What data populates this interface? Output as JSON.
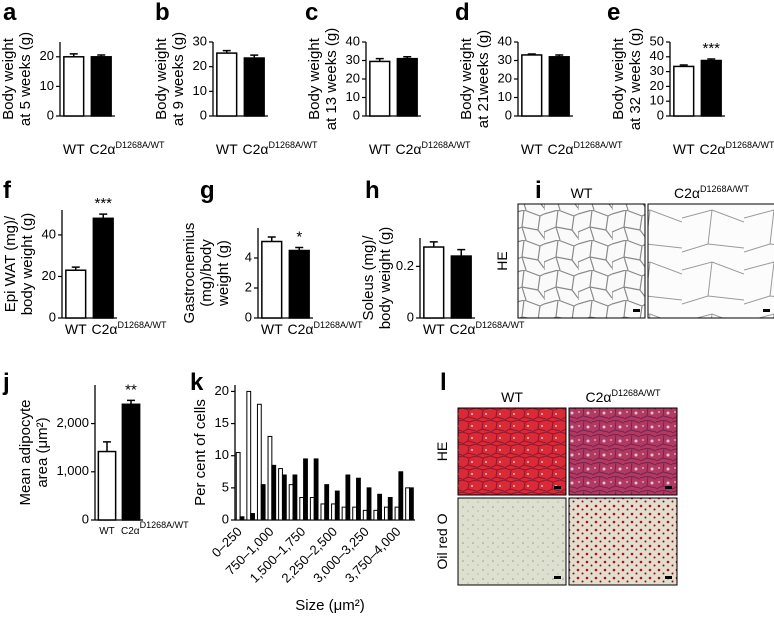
{
  "chart_data": [
    {
      "panel": "a",
      "type": "bar",
      "y_label": [
        "Body weight",
        "at 5 weeks (g)"
      ],
      "categories": [
        "WT",
        "C2α"
      ],
      "category_sup": [
        null,
        "D1268A/WT"
      ],
      "values": [
        20,
        20
      ],
      "errors": [
        1,
        0.6
      ],
      "colors": [
        "#ffffff",
        "#000000"
      ],
      "ylim": [
        0,
        25
      ],
      "yticks": [
        0,
        10,
        20
      ]
    },
    {
      "panel": "b",
      "type": "bar",
      "y_label": [
        "Body weight",
        "at 9 weeks (g)"
      ],
      "categories": [
        "WT",
        "C2α"
      ],
      "category_sup": [
        null,
        "D1268A/WT"
      ],
      "values": [
        25.5,
        23.5
      ],
      "errors": [
        1,
        1.2
      ],
      "colors": [
        "#ffffff",
        "#000000"
      ],
      "ylim": [
        0,
        30
      ],
      "yticks": [
        0,
        10,
        20,
        30
      ]
    },
    {
      "panel": "c",
      "type": "bar",
      "y_label": [
        "Body weight",
        "at 13 weeks (g)"
      ],
      "categories": [
        "WT",
        "C2α"
      ],
      "category_sup": [
        null,
        "D1268A/WT"
      ],
      "values": [
        29.5,
        31
      ],
      "errors": [
        1.5,
        1
      ],
      "colors": [
        "#ffffff",
        "#000000"
      ],
      "ylim": [
        0,
        40
      ],
      "yticks": [
        0,
        10,
        20,
        30,
        40
      ]
    },
    {
      "panel": "d",
      "type": "bar",
      "y_label": [
        "Body weight",
        "at 21weeks (g)"
      ],
      "categories": [
        "WT",
        "C2α"
      ],
      "category_sup": [
        null,
        "D1268A/WT"
      ],
      "values": [
        33,
        32
      ],
      "errors": [
        0.5,
        1
      ],
      "colors": [
        "#ffffff",
        "#000000"
      ],
      "ylim": [
        0,
        40
      ],
      "yticks": [
        0,
        10,
        20,
        30,
        40
      ]
    },
    {
      "panel": "e",
      "type": "bar",
      "y_label": [
        "Body weight",
        "at 32 weeks (g)"
      ],
      "categories": [
        "WT",
        "C2α"
      ],
      "category_sup": [
        null,
        "D1268A/WT"
      ],
      "values": [
        33.5,
        37.5
      ],
      "errors": [
        1,
        1
      ],
      "colors": [
        "#ffffff",
        "#000000"
      ],
      "significance": [
        null,
        "***"
      ],
      "ylim": [
        0,
        50
      ],
      "yticks": [
        0,
        10,
        20,
        30,
        40,
        50
      ]
    },
    {
      "panel": "f",
      "type": "bar",
      "y_label": [
        "Epi WAT (mg)/",
        "body weight (g)"
      ],
      "categories": [
        "WT",
        "C2α"
      ],
      "category_sup": [
        null,
        "D1268A/WT"
      ],
      "values": [
        23,
        48
      ],
      "errors": [
        1.5,
        2
      ],
      "colors": [
        "#ffffff",
        "#000000"
      ],
      "significance": [
        null,
        "***"
      ],
      "ylim": [
        0,
        52
      ],
      "yticks": [
        0,
        20,
        40
      ]
    },
    {
      "panel": "g",
      "type": "bar",
      "y_label": [
        "Gastrocnemius",
        "(mg)/body",
        "weight (g)"
      ],
      "categories": [
        "WT",
        "C2α"
      ],
      "category_sup": [
        null,
        "D1268A/WT"
      ],
      "values": [
        5.1,
        4.5
      ],
      "errors": [
        0.3,
        0.2
      ],
      "colors": [
        "#ffffff",
        "#000000"
      ],
      "significance": [
        null,
        "*"
      ],
      "ylim": [
        0,
        6
      ],
      "yticks": [
        0,
        2,
        4
      ]
    },
    {
      "panel": "h",
      "type": "bar",
      "y_label": [
        "Soleus (mg)/",
        "body weight (g)"
      ],
      "categories": [
        "WT",
        "C2α"
      ],
      "category_sup": [
        null,
        "D1268A/WT"
      ],
      "values": [
        0.275,
        0.24
      ],
      "errors": [
        0.02,
        0.025
      ],
      "colors": [
        "#ffffff",
        "#000000"
      ],
      "ylim": [
        0,
        0.31
      ],
      "yticks": [
        0,
        0.2
      ]
    },
    {
      "panel": "j",
      "type": "bar",
      "y_label": [
        "Mean adipocyte",
        "area (μm²)"
      ],
      "categories": [
        "WT",
        "C2α"
      ],
      "category_sup": [
        null,
        "D1268A/WT"
      ],
      "values": [
        1420,
        2400
      ],
      "errors": [
        200,
        80
      ],
      "colors": [
        "#ffffff",
        "#000000"
      ],
      "significance": [
        null,
        "**"
      ],
      "ylim": [
        0,
        2800
      ],
      "yticks": [
        0,
        {
          "value": 1000,
          "label": "1,000"
        },
        {
          "value": 2000,
          "label": "2,000"
        }
      ]
    },
    {
      "panel": "k",
      "type": "grouped_bar",
      "y_label": [
        "Per cent of cells"
      ],
      "x_label": "Size (μm²)",
      "categories": [
        "0–250",
        null,
        null,
        "750–1,000",
        null,
        null,
        "1,500–1,750",
        null,
        null,
        "2,250–2,500",
        null,
        null,
        "3,000–3,250",
        null,
        null,
        "3,750–4,000",
        null
      ],
      "series": [
        {
          "color": "#ffffff",
          "values": [
            10.5,
            20,
            18,
            13,
            8,
            5.5,
            3.5,
            3.5,
            2.5,
            2.5,
            2,
            2,
            1.5,
            1.5,
            2,
            2,
            5
          ]
        },
        {
          "color": "#000000",
          "values": [
            0.5,
            1,
            5.5,
            8.5,
            7,
            7,
            9.5,
            9.5,
            5.5,
            4.5,
            7,
            6.5,
            5,
            4,
            3.5,
            7.5,
            5
          ]
        }
      ],
      "ylim": [
        0,
        21
      ],
      "yticks": [
        0,
        5,
        10,
        15,
        20
      ]
    }
  ],
  "micrographs": [
    {
      "panel": "i",
      "columns": [
        {
          "text": "WT"
        },
        {
          "text": "C2α",
          "sup": "D1268A/WT"
        }
      ],
      "rows": [
        "HE"
      ]
    },
    {
      "panel": "l",
      "columns": [
        {
          "text": "WT"
        },
        {
          "text": "C2α",
          "sup": "D1268A/WT"
        }
      ],
      "rows": [
        "HE",
        "Oil red O"
      ]
    }
  ]
}
